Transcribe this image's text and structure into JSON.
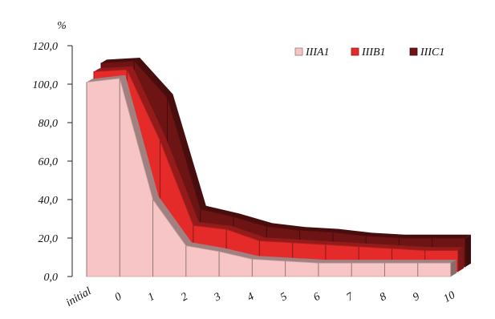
{
  "chart_data": {
    "type": "area",
    "style": "3d-stacked-area",
    "ylabel": "%",
    "ylim": [
      0,
      120
    ],
    "yticks": [
      "0,0",
      "20,0",
      "40,0",
      "60,0",
      "80,0",
      "100,0",
      "120,0"
    ],
    "categories": [
      "initial",
      "0",
      "1",
      "2",
      "3",
      "4",
      "5",
      "6",
      "7",
      "8",
      "9",
      "10"
    ],
    "series": [
      {
        "name": "IIIA1",
        "color": "#f7c5c5",
        "values": [
          101,
          103,
          40,
          16,
          13,
          9,
          8,
          7,
          7,
          7,
          7,
          7
        ]
      },
      {
        "name": "IIIB1",
        "color": "#e52a2a",
        "values": [
          104,
          105,
          68,
          24,
          22,
          16,
          15,
          14,
          13,
          12,
          11,
          11
        ]
      },
      {
        "name": "IIIC1",
        "color": "#6e1414",
        "values": [
          106,
          107,
          88,
          30,
          26,
          21,
          19,
          18,
          16,
          15,
          15,
          15
        ]
      }
    ],
    "legend": "top-right",
    "grid": false
  }
}
